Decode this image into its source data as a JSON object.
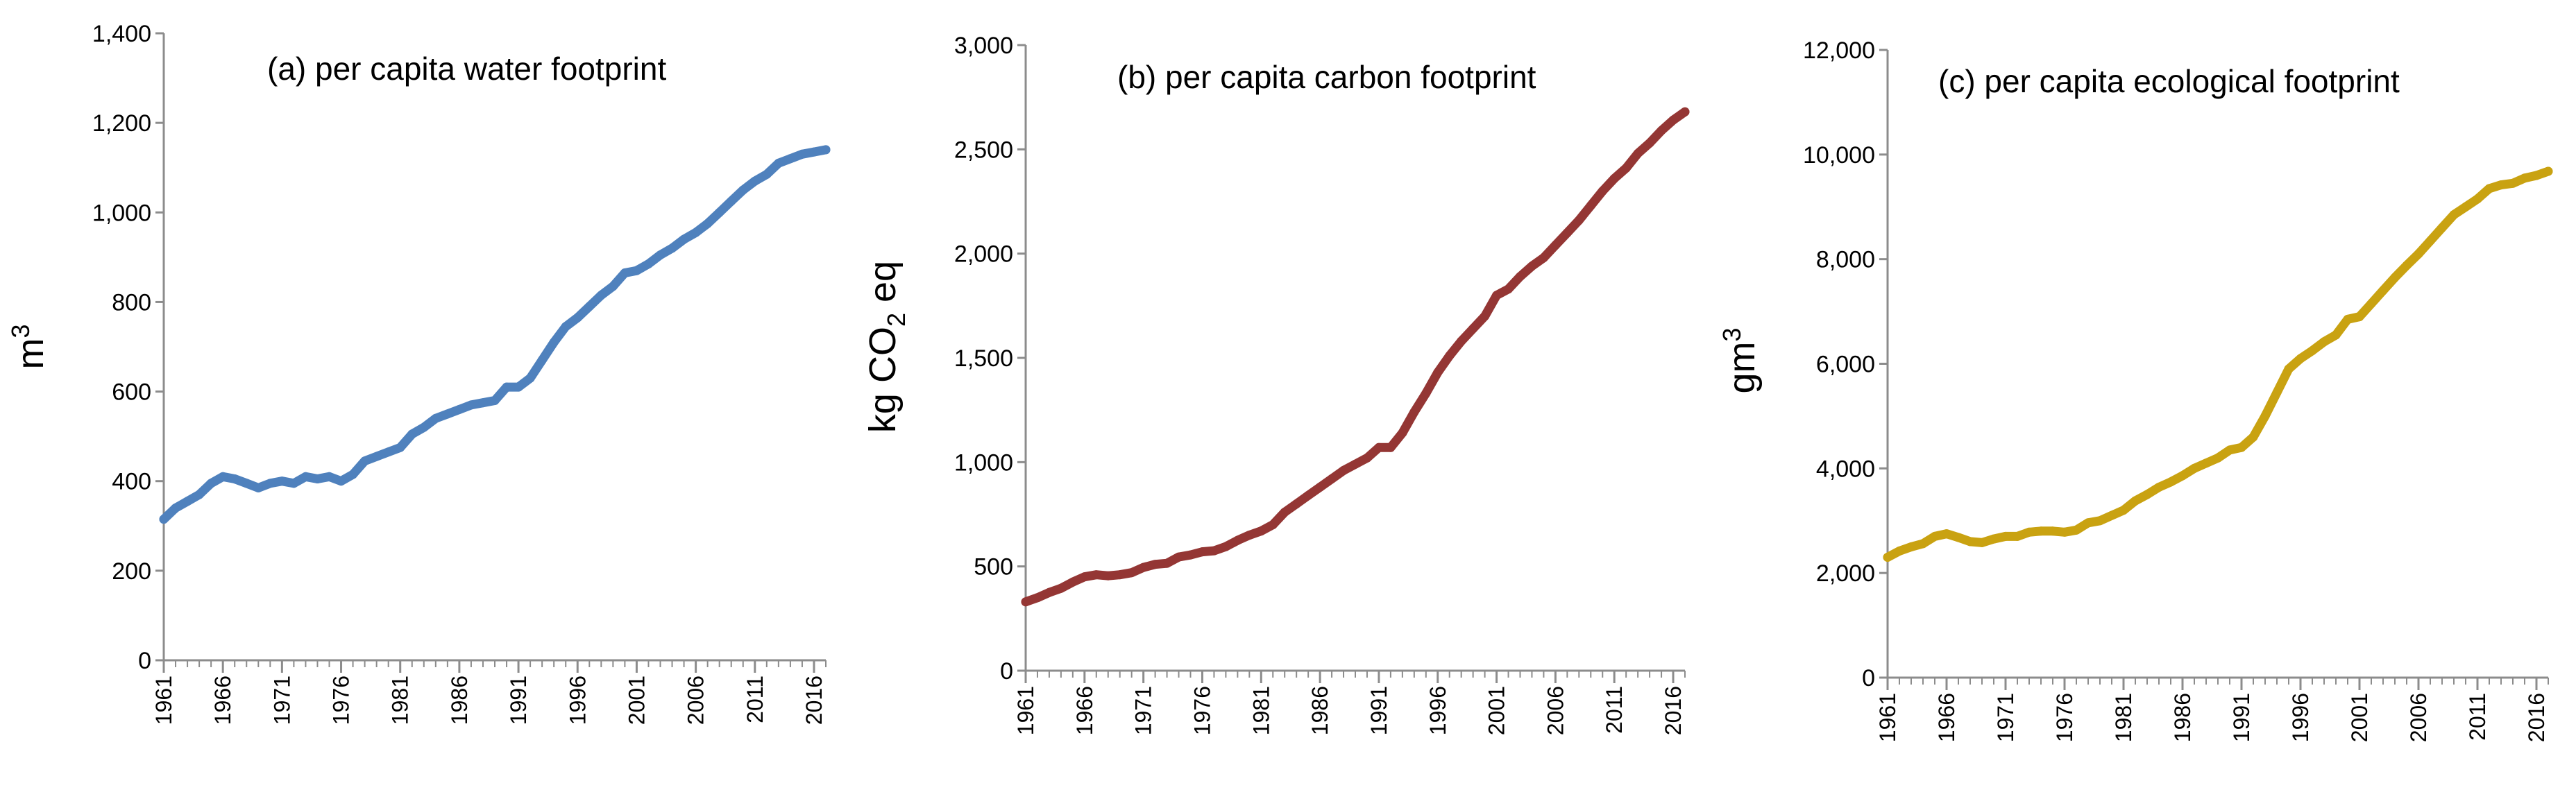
{
  "chart_data": [
    {
      "type": "line",
      "title": "(a) per capita water footprint",
      "ylabel": "m",
      "ylabel_sup": "3",
      "ylim": [
        0,
        1400
      ],
      "yticks": [
        0,
        200,
        400,
        600,
        800,
        1000,
        1200,
        1400
      ],
      "ytick_labels": [
        "0",
        "200",
        "400",
        "600",
        "800",
        "1,000",
        "1,200",
        "1,400"
      ],
      "xlim": [
        1961,
        2017
      ],
      "xticks": [
        1961,
        1966,
        1971,
        1976,
        1981,
        1986,
        1991,
        1996,
        2001,
        2006,
        2011,
        2016
      ],
      "xtick_labels": [
        "1961",
        "1966",
        "1971",
        "1976",
        "1981",
        "1986",
        "1991",
        "1996",
        "2001",
        "2006",
        "2011",
        "2016"
      ],
      "color": "#4f81bd",
      "series": [
        {
          "name": "per capita water footprint",
          "x": [
            1961,
            1962,
            1963,
            1964,
            1965,
            1966,
            1967,
            1968,
            1969,
            1970,
            1971,
            1972,
            1973,
            1974,
            1975,
            1976,
            1977,
            1978,
            1979,
            1980,
            1981,
            1982,
            1983,
            1984,
            1985,
            1986,
            1987,
            1988,
            1989,
            1990,
            1991,
            1992,
            1993,
            1994,
            1995,
            1996,
            1997,
            1998,
            1999,
            2000,
            2001,
            2002,
            2003,
            2004,
            2005,
            2006,
            2007,
            2008,
            2009,
            2010,
            2011,
            2012,
            2013,
            2014,
            2015,
            2016,
            2017
          ],
          "values": [
            315,
            340,
            355,
            370,
            395,
            410,
            405,
            395,
            385,
            395,
            400,
            395,
            410,
            405,
            410,
            400,
            415,
            445,
            455,
            465,
            475,
            505,
            520,
            540,
            550,
            560,
            570,
            575,
            580,
            610,
            610,
            630,
            670,
            710,
            745,
            765,
            790,
            815,
            835,
            865,
            870,
            885,
            905,
            920,
            940,
            955,
            975,
            1000,
            1025,
            1050,
            1070,
            1085,
            1110,
            1120,
            1130,
            1135,
            1140
          ]
        }
      ]
    },
    {
      "type": "line",
      "title": "(b) per capita carbon footprint",
      "ylabel": "kg CO",
      "ylabel_sub": "2",
      "ylabel_tail": " eq",
      "ylim": [
        0,
        3000
      ],
      "yticks": [
        0,
        500,
        1000,
        1500,
        2000,
        2500,
        3000
      ],
      "ytick_labels": [
        "0",
        "500",
        "1,000",
        "1,500",
        "2,000",
        "2,500",
        "3,000"
      ],
      "xlim": [
        1961,
        2017
      ],
      "xticks": [
        1961,
        1966,
        1971,
        1976,
        1981,
        1986,
        1991,
        1996,
        2001,
        2006,
        2011,
        2016
      ],
      "xtick_labels": [
        "1961",
        "1966",
        "1971",
        "1976",
        "1981",
        "1986",
        "1991",
        "1996",
        "2001",
        "2006",
        "2011",
        "2016"
      ],
      "color": "#943634",
      "series": [
        {
          "name": "per capita carbon footprint",
          "x": [
            1961,
            1962,
            1963,
            1964,
            1965,
            1966,
            1967,
            1968,
            1969,
            1970,
            1971,
            1972,
            1973,
            1974,
            1975,
            1976,
            1977,
            1978,
            1979,
            1980,
            1981,
            1982,
            1983,
            1984,
            1985,
            1986,
            1987,
            1988,
            1989,
            1990,
            1991,
            1992,
            1993,
            1994,
            1995,
            1996,
            1997,
            1998,
            1999,
            2000,
            2001,
            2002,
            2003,
            2004,
            2005,
            2006,
            2007,
            2008,
            2009,
            2010,
            2011,
            2012,
            2013,
            2014,
            2015,
            2016,
            2017
          ],
          "values": [
            330,
            350,
            375,
            395,
            425,
            450,
            460,
            455,
            460,
            470,
            495,
            510,
            515,
            545,
            555,
            570,
            575,
            595,
            625,
            650,
            670,
            700,
            760,
            800,
            840,
            880,
            920,
            960,
            990,
            1020,
            1070,
            1070,
            1140,
            1240,
            1330,
            1430,
            1510,
            1580,
            1640,
            1700,
            1800,
            1830,
            1890,
            1940,
            1980,
            2040,
            2100,
            2160,
            2230,
            2300,
            2360,
            2410,
            2480,
            2530,
            2590,
            2640,
            2680
          ]
        }
      ]
    },
    {
      "type": "line",
      "title": "(c) per capita ecological footprint",
      "ylabel": "gm",
      "ylabel_sup": "3",
      "ylim": [
        0,
        12000
      ],
      "yticks": [
        0,
        2000,
        4000,
        6000,
        8000,
        10000,
        12000
      ],
      "ytick_labels": [
        "0",
        "2,000",
        "4,000",
        "6,000",
        "8,000",
        "10,000",
        "12,000"
      ],
      "xlim": [
        1961,
        2017
      ],
      "xticks": [
        1961,
        1966,
        1971,
        1976,
        1981,
        1986,
        1991,
        1996,
        2001,
        2006,
        2011,
        2016
      ],
      "xtick_labels": [
        "1961",
        "1966",
        "1971",
        "1976",
        "1981",
        "1986",
        "1991",
        "1996",
        "2001",
        "2006",
        "2011",
        "2016"
      ],
      "color": "#c9a211",
      "series": [
        {
          "name": "per capita ecological footprint",
          "x": [
            1961,
            1962,
            1963,
            1964,
            1965,
            1966,
            1967,
            1968,
            1969,
            1970,
            1971,
            1972,
            1973,
            1974,
            1975,
            1976,
            1977,
            1978,
            1979,
            1980,
            1981,
            1982,
            1983,
            1984,
            1985,
            1986,
            1987,
            1988,
            1989,
            1990,
            1991,
            1992,
            1993,
            1994,
            1995,
            1996,
            1997,
            1998,
            1999,
            2000,
            2001,
            2002,
            2003,
            2004,
            2005,
            2006,
            2007,
            2008,
            2009,
            2010,
            2011,
            2012,
            2013,
            2014,
            2015,
            2016,
            2017
          ],
          "values": [
            2300,
            2420,
            2500,
            2560,
            2700,
            2750,
            2680,
            2600,
            2580,
            2650,
            2700,
            2700,
            2780,
            2800,
            2800,
            2780,
            2820,
            2960,
            3000,
            3100,
            3200,
            3380,
            3500,
            3640,
            3740,
            3860,
            4000,
            4100,
            4200,
            4350,
            4400,
            4600,
            5000,
            5450,
            5900,
            6100,
            6250,
            6420,
            6550,
            6850,
            6900,
            7150,
            7400,
            7650,
            7880,
            8100,
            8350,
            8600,
            8850,
            9000,
            9150,
            9350,
            9420,
            9450,
            9550,
            9600,
            9680
          ]
        }
      ]
    }
  ]
}
